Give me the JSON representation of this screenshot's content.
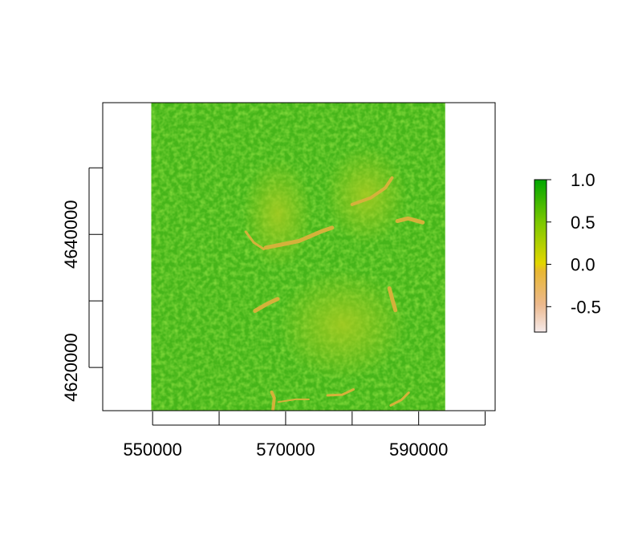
{
  "chart_data": {
    "type": "heatmap",
    "title": "",
    "xlabel": "",
    "ylabel": "",
    "xlim": [
      542500,
      601500
    ],
    "ylim": [
      4613500,
      4659800
    ],
    "raster_extent": {
      "xmin": 549800,
      "xmax": 594000,
      "ymin": 4613500,
      "ymax": 4659800
    },
    "x_ticks": [
      550000,
      560000,
      570000,
      580000,
      590000,
      600000
    ],
    "x_tick_labels": [
      "550000",
      "",
      "570000",
      "",
      "590000",
      ""
    ],
    "y_ticks": [
      4620000,
      4630000,
      4640000,
      4650000
    ],
    "y_tick_labels": [
      "4620000",
      "",
      "4640000",
      ""
    ],
    "legend": {
      "placement": "right",
      "range": [
        -0.8,
        1.0
      ],
      "ticks": [
        1.0,
        0.5,
        0.0,
        -0.5
      ],
      "tick_labels": [
        "1.0",
        "0.5",
        "0.0",
        "-0.5"
      ],
      "colors": [
        "#f2e6e6",
        "#ebb68a",
        "#e8c020",
        "#d9d900",
        "#9acd00",
        "#00a600"
      ]
    },
    "value_description_colors": {
      "high": "#3db81a",
      "mid": "#8cc81c",
      "low": "#d2b838"
    }
  }
}
